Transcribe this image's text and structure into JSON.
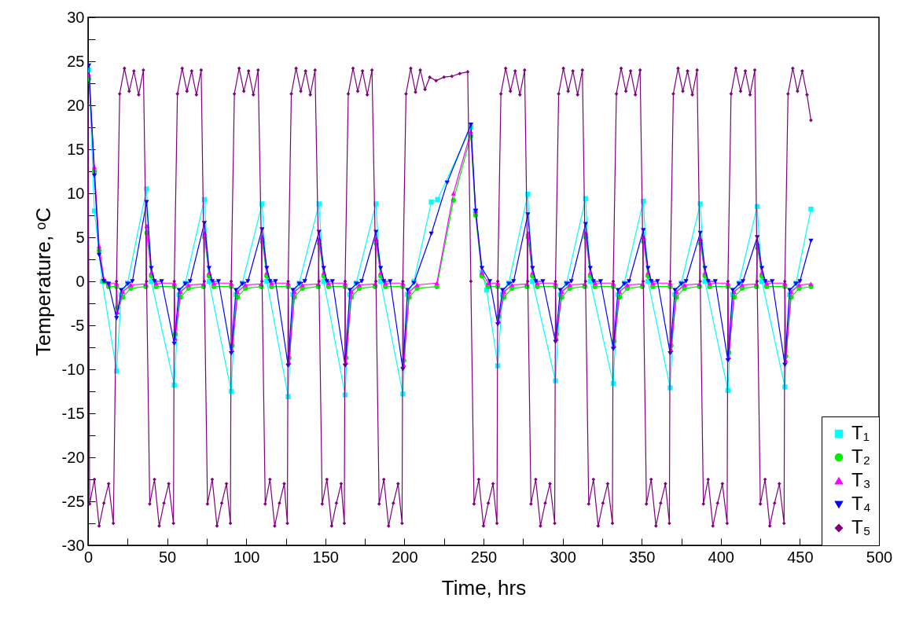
{
  "chart_data": {
    "type": "line",
    "xlabel": "Time, hrs",
    "ylabel": "Temperature, ᵒC",
    "xlim": [
      0,
      500
    ],
    "ylim": [
      -30,
      30
    ],
    "xticks": [
      0,
      {
        "value": 25,
        "label": null
      },
      50,
      {
        "value": 75,
        "label": null
      },
      100,
      {
        "value": 125,
        "label": null
      },
      150,
      {
        "value": 175,
        "label": null
      },
      200,
      {
        "value": 225,
        "label": null
      },
      250,
      {
        "value": 275,
        "label": null
      },
      300,
      {
        "value": 325,
        "label": null
      },
      350,
      {
        "value": 375,
        "label": null
      },
      400,
      {
        "value": 425,
        "label": null
      },
      450,
      {
        "value": 475,
        "label": null
      },
      500
    ],
    "yticks": [
      -30,
      {
        "value": -27.5,
        "label": null
      },
      -25,
      {
        "value": -22.5,
        "label": null
      },
      -20,
      {
        "value": -17.5,
        "label": null
      },
      -15,
      {
        "value": -12.5,
        "label": null
      },
      -10,
      {
        "value": -7.5,
        "label": null
      },
      -5,
      {
        "value": -2.5,
        "label": null
      },
      0,
      {
        "value": 2.5,
        "label": null
      },
      5,
      {
        "value": 7.5,
        "label": null
      },
      10,
      {
        "value": 12.5,
        "label": null
      },
      15,
      {
        "value": 17.5,
        "label": null
      },
      20,
      {
        "value": 22.5,
        "label": null
      },
      25,
      {
        "value": 27.5,
        "label": null
      },
      30
    ],
    "grid": false,
    "legend": "bottom right",
    "line_style": "solid",
    "series": [
      {
        "name": "T₁",
        "color": "#00ffff",
        "marker": "square",
        "x": [
          0.5,
          4,
          9,
          18,
          21,
          25,
          37,
          40,
          54.5,
          57.5,
          61.5,
          73.5,
          76.5,
          90.5,
          93.5,
          97.5,
          110,
          113,
          126.5,
          129.5,
          133.5,
          146,
          149,
          162.5,
          165.5,
          169.5,
          182,
          185,
          199,
          202,
          206,
          217,
          221,
          242,
          245,
          249,
          252,
          259,
          262,
          266,
          278,
          281,
          295.5,
          298.5,
          302.5,
          314.5,
          317.5,
          332,
          335,
          339,
          351,
          354,
          368,
          371,
          375,
          387,
          390,
          404.5,
          407.5,
          411.5,
          423,
          426,
          440.5,
          443.5,
          447.5,
          457
        ],
        "values": [
          24,
          8,
          0,
          -10.2,
          -1.5,
          -0.2,
          10.5,
          0,
          -11.8,
          -1.5,
          -0.2,
          9.3,
          0,
          -12.5,
          -1.5,
          -0.2,
          8.8,
          0,
          -13.1,
          -1.5,
          -0.2,
          8.8,
          0,
          -12.9,
          -1.5,
          -0.2,
          8.8,
          0,
          -12.8,
          -1.5,
          0,
          9.0,
          9.3,
          17.5,
          8,
          1,
          -1,
          -9.6,
          -1.5,
          -0.2,
          9.9,
          0,
          -11.3,
          -1.5,
          -0.2,
          9.4,
          0,
          -11.6,
          -1.5,
          -0.2,
          9.1,
          0,
          -12.1,
          -1.5,
          -0.2,
          8.8,
          0,
          -12.4,
          -1.5,
          -0.2,
          8.5,
          0,
          -12.0,
          -1.5,
          -0.2,
          8.2
        ]
      },
      {
        "name": "T₂",
        "color": "#00ee00",
        "marker": "circle",
        "x": [
          0.5,
          4,
          7,
          10,
          13,
          18,
          18.6,
          22,
          27,
          36.5,
          37.2,
          40,
          43,
          54.5,
          55.1,
          58.5,
          63.5,
          73,
          73.7,
          76.5,
          79.5,
          90.5,
          91.1,
          94.5,
          99.5,
          109.5,
          110.2,
          113,
          116,
          126.5,
          127.1,
          130.5,
          135.5,
          145.5,
          146.2,
          149,
          152,
          162.5,
          163.1,
          166.5,
          171.5,
          181.5,
          182.2,
          185,
          188,
          199,
          199.6,
          203,
          208,
          220.5,
          231,
          242,
          245,
          249,
          253,
          259,
          259.6,
          263,
          268,
          277.5,
          278.2,
          281,
          284,
          295.5,
          296.1,
          299.5,
          304.5,
          314,
          314.7,
          317.5,
          320.5,
          332,
          332.6,
          336,
          341,
          350.5,
          351.2,
          354,
          357,
          368,
          368.6,
          372,
          377,
          386.5,
          387.2,
          390,
          393,
          404.5,
          405.1,
          408.5,
          413.5,
          422.5,
          423.2,
          426,
          429,
          440.5,
          441.1,
          444.5,
          449.5,
          457
        ],
        "values": [
          23,
          12.5,
          3.5,
          0,
          -0.6,
          -0.6,
          -3,
          -1.8,
          -0.8,
          -0.6,
          5.5,
          0.6,
          -0.6,
          -0.6,
          -6,
          -1.8,
          -0.8,
          -0.6,
          5,
          0.6,
          -0.6,
          -0.6,
          -7.3,
          -1.8,
          -0.8,
          -0.6,
          4.5,
          0.6,
          -0.6,
          -0.6,
          -8.7,
          -1.8,
          -0.8,
          -0.6,
          4.3,
          0.6,
          -0.6,
          -0.6,
          -8.7,
          -1.8,
          -0.8,
          -0.6,
          4.3,
          0.6,
          -0.6,
          -0.6,
          -9,
          -1.8,
          -0.8,
          -0.6,
          9.2,
          16.5,
          7.5,
          0.6,
          -0.6,
          -0.6,
          -4,
          -1.8,
          -0.8,
          -0.6,
          5,
          0.6,
          -0.6,
          -0.6,
          -6,
          -1.8,
          -0.8,
          -0.6,
          5,
          0.6,
          -0.6,
          -0.6,
          -6.8,
          -1.8,
          -0.8,
          -0.6,
          4.5,
          0.6,
          -0.6,
          -0.6,
          -7.3,
          -1.8,
          -0.8,
          -0.6,
          4.3,
          0.6,
          -0.6,
          -0.6,
          -8.1,
          -1.8,
          -0.8,
          -0.6,
          3.8,
          0.6,
          -0.6,
          -0.6,
          -8.5,
          -1.8,
          -0.8,
          -0.6
        ]
      },
      {
        "name": "T₃",
        "color": "#ff00ff",
        "marker": "triangle",
        "x": [
          0.5,
          4,
          7,
          10,
          13,
          18,
          18.6,
          22,
          27,
          36.5,
          37.2,
          40,
          43,
          54.5,
          55.1,
          58.5,
          63.5,
          73,
          73.7,
          76.5,
          79.5,
          90.5,
          91.1,
          94.5,
          99.5,
          109.5,
          110.2,
          113,
          116,
          126.5,
          127.1,
          130.5,
          135.5,
          145.5,
          146.2,
          149,
          152,
          162.5,
          163.1,
          166.5,
          171.5,
          181.5,
          182.2,
          185,
          188,
          199,
          199.6,
          203,
          208,
          220.5,
          231,
          242,
          245,
          249,
          253,
          259,
          259.6,
          263,
          268,
          277.5,
          278.2,
          281,
          284,
          295.5,
          296.1,
          299.5,
          304.5,
          314,
          314.7,
          317.5,
          320.5,
          332,
          332.6,
          336,
          341,
          350.5,
          351.2,
          354,
          357,
          368,
          368.6,
          372,
          377,
          386.5,
          387.2,
          390,
          393,
          404.5,
          405.1,
          408.5,
          413.5,
          422.5,
          423.2,
          426,
          429,
          440.5,
          441.1,
          444.5,
          449.5,
          457
        ],
        "values": [
          23.5,
          13,
          4,
          0.3,
          -0.2,
          -0.2,
          -3.5,
          -1.2,
          -0.4,
          -0.3,
          6.3,
          1,
          -0.2,
          -0.2,
          -6.5,
          -1.2,
          -0.4,
          -0.3,
          5.5,
          1,
          -0.2,
          -0.2,
          -7.8,
          -1.2,
          -0.4,
          -0.3,
          5.0,
          1,
          -0.2,
          -0.2,
          -9.2,
          -1.2,
          -0.4,
          -0.3,
          4.8,
          1,
          -0.2,
          -0.2,
          -9.2,
          -1.2,
          -0.4,
          -0.3,
          4.8,
          1,
          -0.2,
          -0.2,
          -9.5,
          -1.2,
          -0.4,
          -0.2,
          10,
          17.0,
          8,
          1,
          -0.2,
          -0.2,
          -4.5,
          -1.2,
          -0.4,
          -0.3,
          5.5,
          1,
          -0.2,
          -0.2,
          -6.5,
          -1.2,
          -0.4,
          -0.3,
          5.5,
          1,
          -0.2,
          -0.2,
          -7.3,
          -1.2,
          -0.4,
          -0.3,
          5.0,
          1,
          -0.2,
          -0.2,
          -7.8,
          -1.2,
          -0.4,
          -0.3,
          4.8,
          1,
          -0.2,
          -0.2,
          -8.6,
          -1.2,
          -0.4,
          -0.3,
          4.3,
          1,
          -0.2,
          -0.2,
          -9.0,
          -1.2,
          -0.4,
          -0.3
        ]
      },
      {
        "name": "T₄",
        "color": "#0000ff",
        "marker": "triangle-down",
        "x": [
          0.5,
          4,
          7,
          10,
          13,
          18,
          21,
          25,
          28,
          37,
          40,
          42,
          46.5,
          54.5,
          57.5,
          61.5,
          64.5,
          73.5,
          76.5,
          78.5,
          82.5,
          90.5,
          93.5,
          97.5,
          101,
          110,
          113,
          115,
          118.5,
          126.5,
          129.5,
          133.5,
          137,
          146,
          149,
          151,
          154.5,
          162.5,
          165.5,
          169.5,
          173,
          182,
          185,
          187,
          191,
          199,
          202,
          206,
          217,
          227,
          242,
          245,
          249,
          254,
          259,
          262,
          266,
          269,
          278,
          281,
          283,
          287.5,
          295.5,
          298.5,
          302.5,
          305.5,
          314.5,
          317.5,
          319.5,
          324,
          332,
          335,
          339,
          342,
          351,
          354,
          356,
          360,
          368,
          371,
          375,
          378,
          387,
          390,
          392,
          396.5,
          404.5,
          407.5,
          411.5,
          414,
          423,
          426,
          428,
          432.5,
          440.5,
          443.5,
          447.5,
          450,
          457
        ],
        "values": [
          24.5,
          12,
          3,
          0,
          -0.3,
          -4.2,
          -1,
          -0.3,
          0,
          9.0,
          1.5,
          0,
          0,
          -7.1,
          -1,
          -0.3,
          0,
          6.6,
          1.5,
          0,
          0,
          -8.2,
          -1,
          -0.3,
          0,
          5.9,
          1.5,
          0,
          0,
          -9.6,
          -1,
          -0.3,
          0,
          5.6,
          1.5,
          0,
          0,
          -9.6,
          -1,
          -0.3,
          0,
          5.6,
          1.5,
          0,
          0,
          -10,
          -1,
          -0.2,
          5.4,
          11.2,
          17.8,
          8,
          1.5,
          0,
          -4.9,
          -1,
          -0.3,
          0,
          7.6,
          1.5,
          0,
          0,
          -6.9,
          -1,
          -0.3,
          0,
          6.5,
          1.5,
          0,
          0,
          -7.7,
          -1,
          -0.3,
          0,
          5.8,
          1.5,
          0,
          0,
          -8.2,
          -1,
          -0.3,
          0,
          5.5,
          1.5,
          0,
          0,
          -9.0,
          -1,
          -0.3,
          0,
          5.0,
          1.5,
          0,
          0,
          -9.5,
          -1,
          -0.3,
          0,
          4.6
        ]
      },
      {
        "name": "T₅",
        "color": "#800080",
        "marker": "diamond",
        "x": [
          0,
          1,
          4,
          7,
          10,
          13,
          16,
          18,
          20,
          23,
          26,
          29,
          32,
          35,
          37,
          39,
          42,
          45,
          48,
          51,
          54,
          54.5,
          56.5,
          59.5,
          62.5,
          65.5,
          68.5,
          71.5,
          73.5,
          75.5,
          78.5,
          81.5,
          84.5,
          87.5,
          90,
          90.5,
          92.5,
          95.5,
          98.5,
          101.5,
          104.5,
          107.5,
          110,
          112,
          115,
          118,
          121,
          124,
          126,
          126.5,
          128.5,
          131.5,
          134.5,
          137.5,
          140.5,
          143.5,
          146,
          148,
          151,
          154,
          157,
          160,
          162,
          162.5,
          164.5,
          167.5,
          170.5,
          173.5,
          176.5,
          179.5,
          182,
          184,
          187,
          190,
          193,
          196,
          198.5,
          199,
          201,
          204,
          207,
          210,
          213,
          216,
          220,
          225,
          230,
          235,
          240,
          242,
          244,
          247,
          250,
          253,
          256,
          258.5,
          259,
          261,
          264,
          267,
          270,
          273,
          276,
          278,
          280,
          283,
          286,
          289,
          292,
          295,
          295.5,
          297.5,
          300.5,
          303.5,
          306.5,
          309.5,
          312.5,
          314.5,
          316.5,
          319.5,
          322.5,
          325.5,
          328.5,
          331.5,
          332,
          334,
          337,
          340,
          343,
          346,
          349,
          351,
          353,
          356,
          359,
          362,
          365,
          367.5,
          368,
          370,
          373,
          376,
          379,
          382,
          385,
          387,
          389,
          392,
          395,
          398,
          401,
          404,
          404.5,
          406.5,
          409.5,
          412.5,
          415.5,
          418.5,
          421.5,
          423,
          425,
          428,
          431,
          434,
          437,
          440,
          440.5,
          442.5,
          445.5,
          448.5,
          451.5,
          454.5,
          457
        ],
        "values": [
          20,
          -25.3,
          -22.5,
          -27.8,
          -25.2,
          -23,
          -27.5,
          0,
          21.3,
          24.2,
          21.6,
          23.9,
          21.2,
          24.0,
          0,
          -25.3,
          -22.5,
          -27.8,
          -25.2,
          -23,
          -27.5,
          0,
          21.3,
          24.2,
          21.6,
          23.9,
          21.2,
          24.0,
          0,
          -25.3,
          -22.5,
          -27.8,
          -25.2,
          -23,
          -27.5,
          0,
          21.3,
          24.2,
          21.6,
          23.9,
          21.2,
          24.0,
          0,
          -25.3,
          -22.5,
          -27.8,
          -25.2,
          -23,
          -27.5,
          0,
          21.3,
          24.2,
          21.6,
          23.9,
          21.2,
          24.0,
          0,
          -25.3,
          -22.5,
          -27.8,
          -25.2,
          -23,
          -27.5,
          0,
          21.3,
          24.2,
          21.6,
          23.9,
          21.2,
          24.0,
          0,
          -25.3,
          -22.5,
          -27.8,
          -25.2,
          -23,
          -27.5,
          0,
          21.3,
          24.2,
          21.5,
          24.0,
          21.8,
          23.2,
          22.8,
          23.2,
          23.3,
          23.6,
          23.8,
          0,
          -25.3,
          -22.5,
          -27.8,
          -25.2,
          -23,
          -27.5,
          0,
          21.3,
          24.2,
          21.6,
          23.9,
          21.2,
          24.0,
          0,
          -25.3,
          -22.5,
          -27.8,
          -25.2,
          -23,
          -27.5,
          0,
          21.3,
          24.2,
          21.6,
          23.9,
          21.2,
          24.0,
          0,
          -25.3,
          -22.5,
          -27.8,
          -25.2,
          -23,
          -27.5,
          0,
          21.3,
          24.2,
          21.6,
          23.9,
          21.2,
          24.0,
          0,
          -25.3,
          -22.5,
          -27.8,
          -25.2,
          -23,
          -27.5,
          0,
          21.3,
          24.2,
          21.6,
          23.9,
          21.2,
          24.0,
          0,
          -25.3,
          -22.5,
          -27.8,
          -25.2,
          -23,
          -27.5,
          0,
          21.3,
          24.2,
          21.6,
          23.9,
          21.2,
          24.0,
          0,
          -25.3,
          -22.5,
          -27.8,
          -25.2,
          -23,
          -27.5,
          0,
          21.3,
          24.2,
          21.6,
          23.9,
          21.2,
          18.3
        ]
      }
    ]
  }
}
